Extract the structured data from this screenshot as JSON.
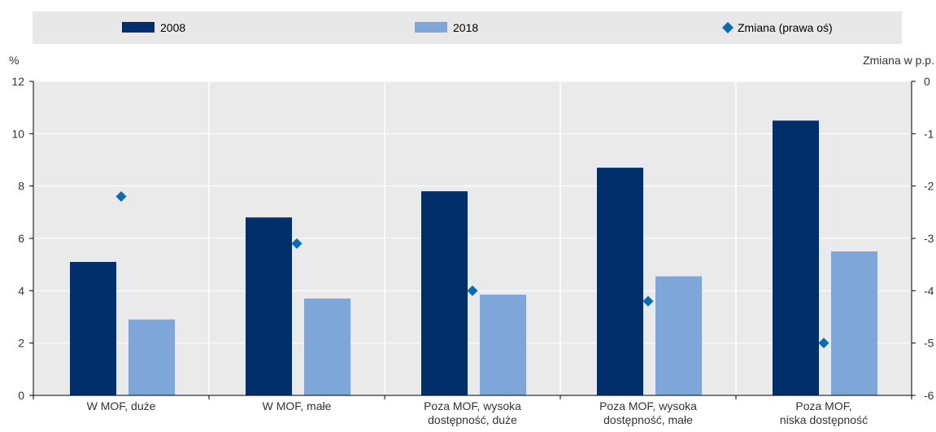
{
  "chart_data": {
    "type": "bar",
    "categories": [
      [
        "W MOF, duże"
      ],
      [
        "W MOF, małe"
      ],
      [
        "Poza MOF, wysoka",
        "dostępność, duże"
      ],
      [
        "Poza MOF, wysoka",
        "dostępność, małe"
      ],
      [
        "Poza MOF,",
        "niska dostępność"
      ]
    ],
    "series": [
      {
        "name": "2008",
        "axis": "left",
        "kind": "bar",
        "color": "#002f6c",
        "values": [
          5.1,
          6.8,
          7.8,
          8.7,
          10.5
        ]
      },
      {
        "name": "2018",
        "axis": "left",
        "kind": "bar",
        "color": "#7fa6d8",
        "values": [
          2.9,
          3.7,
          3.85,
          4.55,
          5.5
        ]
      },
      {
        "name": "Zmiana (prawa oś)",
        "axis": "right",
        "kind": "marker-diamond",
        "color": "#0a6bb5",
        "values": [
          -2.2,
          -3.1,
          -4.0,
          -4.2,
          -5.0
        ]
      }
    ],
    "y_left": {
      "label": "%",
      "min": 0,
      "max": 12,
      "ticks": [
        "0",
        "2",
        "4",
        "6",
        "8",
        "10",
        "12"
      ]
    },
    "y_right": {
      "label": "Zmiana w p.p.",
      "min": -6,
      "max": 0,
      "ticks": [
        "-6",
        "-5",
        "-4",
        "-3",
        "-2",
        "-1",
        "0"
      ]
    },
    "grid": "horizontal",
    "legend_position": "top"
  }
}
